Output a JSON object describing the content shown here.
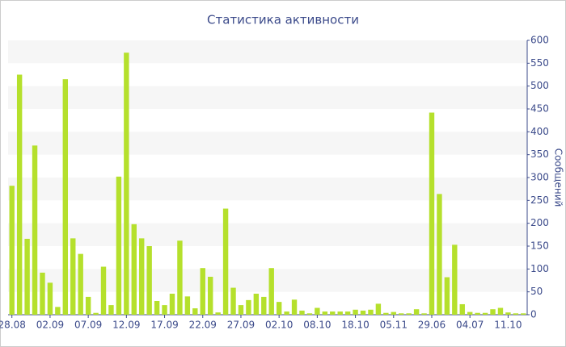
{
  "chart_data": {
    "type": "bar",
    "title": "Статистика активности",
    "y_label": "Сообщений",
    "categories": [
      "28.08",
      null,
      null,
      null,
      null,
      "02.09",
      null,
      null,
      null,
      null,
      "07.09",
      null,
      null,
      null,
      null,
      "12.09",
      null,
      null,
      null,
      null,
      "17.09",
      null,
      null,
      null,
      null,
      "22.09",
      null,
      null,
      null,
      null,
      "27.09",
      null,
      null,
      null,
      null,
      "02.10",
      null,
      null,
      null,
      null,
      "08.10",
      null,
      null,
      null,
      null,
      "18.10",
      null,
      null,
      null,
      null,
      "05.11",
      null,
      null,
      null,
      null,
      "29.06",
      null,
      null,
      null,
      null,
      "04.07",
      null,
      null,
      null,
      null,
      "11.10",
      null,
      null
    ],
    "values": [
      282,
      525,
      166,
      370,
      92,
      70,
      17,
      515,
      167,
      133,
      39,
      4,
      105,
      21,
      302,
      573,
      198,
      167,
      150,
      30,
      21,
      46,
      162,
      40,
      14,
      102,
      83,
      5,
      232,
      59,
      21,
      32,
      46,
      39,
      102,
      28,
      7,
      33,
      9,
      3,
      15,
      7,
      7,
      7,
      7,
      11,
      9,
      11,
      24,
      4,
      6,
      3,
      3,
      12,
      3,
      442,
      264,
      82,
      153,
      23,
      6,
      4,
      4,
      12,
      15,
      5,
      3,
      3
    ],
    "color": "#b5e02c",
    "ylim": [
      0,
      600
    ],
    "yticks": [
      0,
      50,
      100,
      150,
      200,
      250,
      300,
      350,
      400,
      450,
      500,
      550,
      600
    ],
    "grid": true
  }
}
